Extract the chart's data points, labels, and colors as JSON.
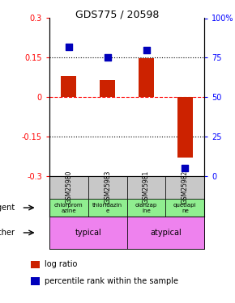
{
  "title": "GDS775 / 20598",
  "samples": [
    "GSM25980",
    "GSM25983",
    "GSM25981",
    "GSM25982"
  ],
  "log_ratio": [
    0.08,
    0.065,
    0.148,
    -0.23
  ],
  "percentile_pct": [
    82,
    75,
    80,
    5
  ],
  "ylim_left": [
    -0.3,
    0.3
  ],
  "ylim_right": [
    0,
    100
  ],
  "yticks_left": [
    -0.3,
    -0.15,
    0,
    0.15,
    0.3
  ],
  "yticks_right": [
    0,
    25,
    50,
    75,
    100
  ],
  "ytick_labels_left": [
    "-0.3",
    "-0.15",
    "0",
    "0.15",
    "0.3"
  ],
  "ytick_labels_right": [
    "0",
    "25",
    "50",
    "75",
    "100%"
  ],
  "hlines_dotted": [
    0.15,
    -0.15
  ],
  "agent_labels": [
    "chlorprom\nazine",
    "thioridazin\ne",
    "olanzap\nine",
    "quetiapi\nne"
  ],
  "other_labels": [
    "typical",
    "atypical"
  ],
  "other_color": "#ee82ee",
  "agent_color": "#90ee90",
  "sample_color": "#c8c8c8",
  "bar_color": "#cc2200",
  "dot_color": "#0000bb",
  "bar_width": 0.4,
  "dot_size": 35,
  "legend_bar_label": "log ratio",
  "legend_dot_label": "percentile rank within the sample",
  "x_positions": [
    1,
    2,
    3,
    4
  ],
  "xlim": [
    0.5,
    4.5
  ]
}
